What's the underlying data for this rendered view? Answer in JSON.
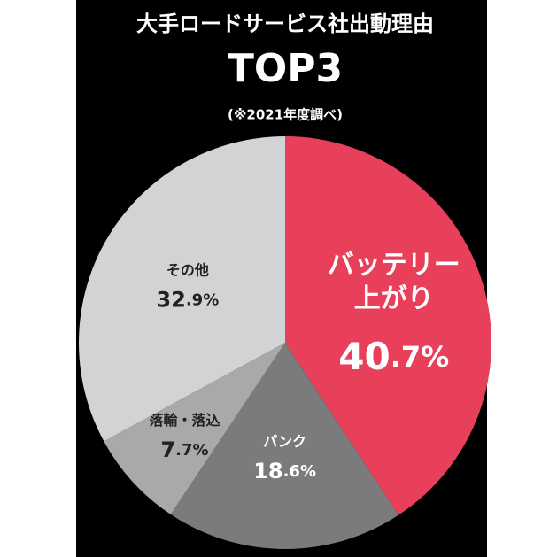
{
  "chart_data": {
    "type": "pie",
    "title": "大手ロードサービス社出動理由\nTOP3",
    "subtitle": "(※2021年度調べ)",
    "categories": [
      "バッテリー\n上がり",
      "パンク",
      "落輪・落込",
      "その他"
    ],
    "values": [
      40.7,
      18.6,
      7.7,
      32.9
    ],
    "value_labels": [
      "40.7%",
      "18.6%",
      "7.7%",
      "32.9%"
    ],
    "colors": [
      "#e8405a",
      "#7b7b7d",
      "#a8a9ab",
      "#d2d3d5"
    ]
  }
}
